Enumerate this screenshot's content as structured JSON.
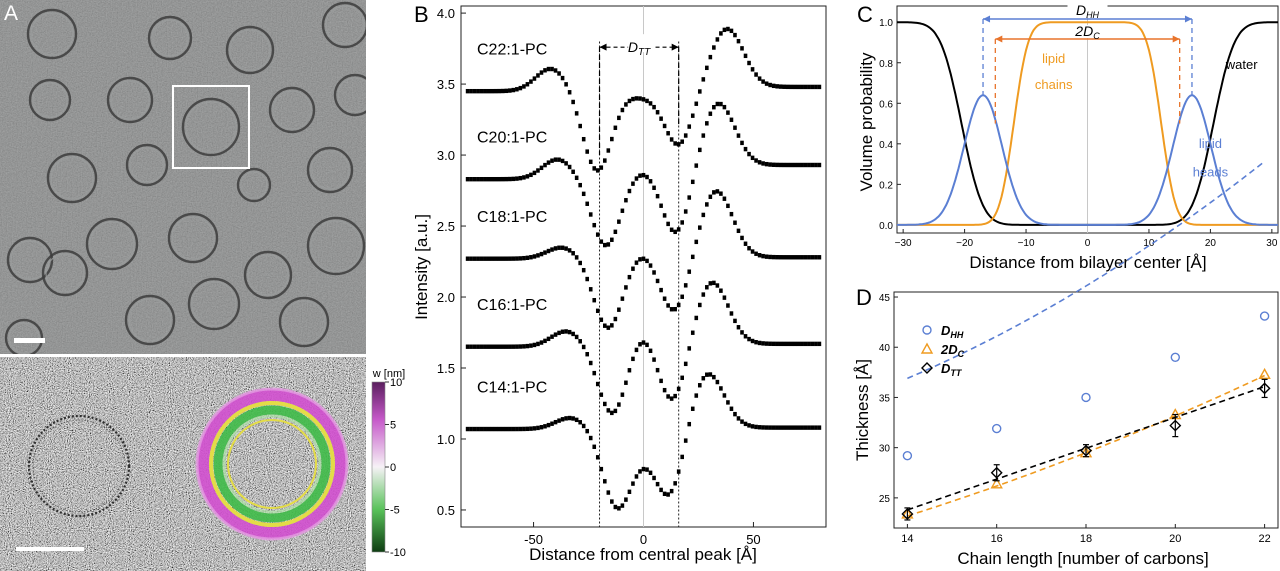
{
  "figure": {
    "panel_a": {
      "label": "A",
      "colorbar_title": "w [nm]",
      "colorbar_ticks": [
        "10",
        "5",
        "0",
        "-5",
        "-10"
      ],
      "colors": {
        "micrograph": "#7f8181",
        "noise_bg": "#bdbdbd",
        "ring_dark": "#3c3c3c"
      }
    },
    "panel_b": {
      "label": "B"
    },
    "panel_c": {
      "label": "C"
    },
    "panel_d": {
      "label": "D"
    }
  },
  "chart_data": [
    {
      "panel": "B",
      "type": "scatter",
      "xlabel": "Distance from central peak [Å]",
      "ylabel": "Intensity [a.u.]",
      "xlim": [
        -83,
        83
      ],
      "ylim": [
        0.38,
        4.05
      ],
      "xticks": [
        -50,
        0,
        50
      ],
      "yticks": [
        0.5,
        1.0,
        1.5,
        2.0,
        2.5,
        3.0,
        3.5,
        4.0
      ],
      "ytick_labels": [
        "0.5",
        "1.0",
        "1.5",
        "2.0",
        "2.5",
        "3.0",
        "3.5",
        "4.0"
      ],
      "annotation": "D_TT",
      "vertical_lines": [
        -20,
        16
      ],
      "series": [
        {
          "name": "C22:1-PC",
          "baseline": 3.45,
          "left_peak_x": -42,
          "left_peak_y": 3.61,
          "left_min_x": -21,
          "left_min_y": 2.89,
          "center_y": 3.41,
          "right_min_x": 16,
          "right_min_y": 3.08,
          "right_peak_x": 38,
          "right_peak_y": 3.89,
          "right_baseline": 3.48
        },
        {
          "name": "C20:1-PC",
          "baseline": 2.83,
          "left_peak_x": -39,
          "left_peak_y": 2.97,
          "left_min_x": -17,
          "left_min_y": 2.36,
          "center_y": 2.89,
          "right_min_x": 15,
          "right_min_y": 2.47,
          "right_peak_x": 34,
          "right_peak_y": 3.37,
          "right_baseline": 2.93
        },
        {
          "name": "C18:1-PC",
          "baseline": 2.27,
          "left_peak_x": -37,
          "left_peak_y": 2.35,
          "left_min_x": -16,
          "left_min_y": 1.78,
          "center_y": 2.33,
          "right_min_x": 14,
          "right_min_y": 1.89,
          "right_peak_x": 33,
          "right_peak_y": 2.75,
          "right_baseline": 2.28
        },
        {
          "name": "C16:1-PC",
          "baseline": 1.65,
          "left_peak_x": -35,
          "left_peak_y": 1.76,
          "left_min_x": -14,
          "left_min_y": 1.17,
          "center_y": 1.78,
          "right_min_x": 13,
          "right_min_y": 1.25,
          "right_peak_x": 31,
          "right_peak_y": 2.11,
          "right_baseline": 1.67
        },
        {
          "name": "C14:1-PC",
          "baseline": 1.07,
          "left_peak_x": -33,
          "left_peak_y": 1.15,
          "left_min_x": -12,
          "left_min_y": 0.53,
          "center_y": 0.97,
          "right_min_x": 12,
          "right_min_y": 0.61,
          "right_peak_x": 29,
          "right_peak_y": 1.47,
          "right_baseline": 1.08
        }
      ]
    },
    {
      "panel": "C",
      "type": "line",
      "xlabel": "Distance from bilayer center [Å]",
      "ylabel": "Volume probability",
      "xlim": [
        -31,
        31
      ],
      "ylim": [
        -0.04,
        1.08
      ],
      "xticks": [
        -30,
        -20,
        -10,
        0,
        10,
        20,
        30
      ],
      "xtick_labels": [
        "−30",
        "−20",
        "−10",
        "0",
        "10",
        "20",
        "30"
      ],
      "yticks": [
        0.0,
        0.2,
        0.4,
        0.6,
        0.8,
        1.0
      ],
      "ytick_labels": [
        "0.0",
        "0.2",
        "0.4",
        "0.6",
        "0.8",
        "1.0"
      ],
      "annotations": {
        "dhh_label": "D",
        "dhh_sub": "HH",
        "dc_label": "2D",
        "dc_sub": "C"
      },
      "d_hh_half": 17,
      "d_c_half": 15,
      "series": [
        {
          "name": "water",
          "color": "#000000",
          "edge_x": 20.5,
          "width": 3.8
        },
        {
          "name": "lipid chains",
          "label_lines": [
            "lipid",
            "chains"
          ],
          "color": "#ef9b21",
          "edge_x": 12.0,
          "width": 2.6
        },
        {
          "name": "lipid heads",
          "label_lines": [
            "lipid",
            "heads"
          ],
          "color": "#5b7fd3",
          "center_x": 17,
          "sigma": 3.1,
          "peak": 0.64
        }
      ]
    },
    {
      "panel": "D",
      "type": "scatter",
      "xlabel": "Chain length [number of carbons]",
      "ylabel": "Thickness [Å]",
      "xlim": [
        13.7,
        22.3
      ],
      "ylim": [
        22,
        45.5
      ],
      "xticks": [
        14,
        16,
        18,
        20,
        22
      ],
      "yticks": [
        25,
        30,
        35,
        40,
        45
      ],
      "legend_position": "top-left",
      "series": [
        {
          "name": "D",
          "sub": "HH",
          "marker": "circle",
          "color": "#5b7fd3",
          "x": [
            14,
            16,
            18,
            20,
            22
          ],
          "y": [
            29.2,
            31.9,
            35.0,
            39.0,
            43.1
          ],
          "err": [
            0,
            0,
            0,
            0,
            0
          ],
          "fit": [
            0.1,
            -0.9,
            29.9
          ]
        },
        {
          "name": "2D",
          "sub": "C",
          "marker": "triangle",
          "color": "#ef9b21",
          "x": [
            14,
            16,
            18,
            20,
            22
          ],
          "y": [
            23.4,
            26.4,
            29.5,
            33.3,
            37.3
          ],
          "err": [
            0,
            0,
            0,
            0,
            0
          ],
          "fit": [
            0.043,
            0.2,
            11.97
          ]
        },
        {
          "name": "D",
          "sub": "TT",
          "marker": "diamond",
          "color": "#000000",
          "x": [
            14,
            16,
            18,
            20,
            22
          ],
          "y": [
            23.4,
            27.5,
            29.7,
            32.2,
            35.9
          ],
          "err": [
            0.6,
            0.8,
            0.6,
            1.1,
            0.9
          ],
          "fit": [
            0.0,
            1.535,
            2.31
          ]
        }
      ]
    }
  ]
}
